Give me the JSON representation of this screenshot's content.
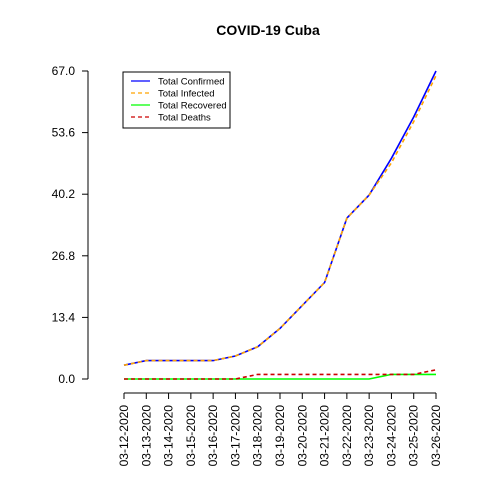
{
  "chart_data": {
    "type": "line",
    "title": "COVID-19 Cuba",
    "xlabel": "",
    "ylabel": "",
    "x": [
      "03-12-2020",
      "03-13-2020",
      "03-14-2020",
      "03-15-2020",
      "03-16-2020",
      "03-17-2020",
      "03-18-2020",
      "03-19-2020",
      "03-20-2020",
      "03-21-2020",
      "03-22-2020",
      "03-23-2020",
      "03-24-2020",
      "03-25-2020",
      "03-26-2020"
    ],
    "yticks": [
      "0.0",
      "13.4",
      "26.8",
      "40.2",
      "53.6",
      "67.0"
    ],
    "ylim": [
      0,
      67
    ],
    "grid": false,
    "legend_position": "top-left",
    "series": [
      {
        "name": "Total Confirmed",
        "color": "#0000ff",
        "dash": "solid",
        "values": [
          3,
          4,
          4,
          4,
          4,
          5,
          7,
          11,
          16,
          21,
          35,
          40,
          48,
          57,
          67
        ]
      },
      {
        "name": "Total Infected",
        "color": "#ffa500",
        "dash": "dashed",
        "values": [
          3,
          4,
          4,
          4,
          4,
          5,
          7,
          11,
          16,
          21,
          35,
          40,
          47,
          56,
          66
        ]
      },
      {
        "name": "Total Recovered",
        "color": "#00ff00",
        "dash": "solid",
        "values": [
          0,
          0,
          0,
          0,
          0,
          0,
          0,
          0,
          0,
          0,
          0,
          0,
          1,
          1,
          1
        ]
      },
      {
        "name": "Total Deaths",
        "color": "#cc0000",
        "dash": "dashed",
        "values": [
          0,
          0,
          0,
          0,
          0,
          0,
          1,
          1,
          1,
          1,
          1,
          1,
          1,
          1,
          2
        ]
      }
    ]
  }
}
